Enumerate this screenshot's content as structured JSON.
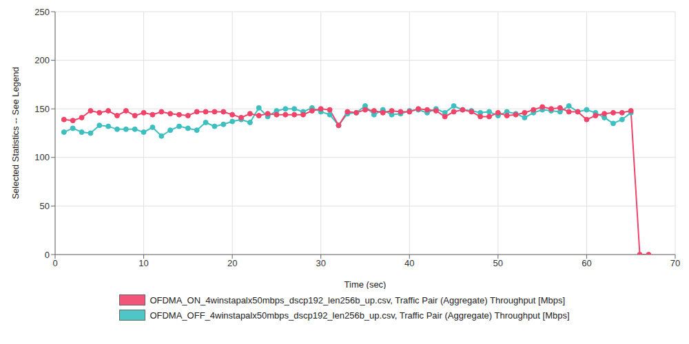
{
  "chart_data": {
    "type": "line",
    "x_label": "Time (sec)",
    "y_label": "Selected Statistics -- See Legend",
    "x": [
      1,
      2,
      3,
      4,
      5,
      6,
      7,
      8,
      9,
      10,
      11,
      12,
      13,
      14,
      15,
      16,
      17,
      18,
      19,
      20,
      21,
      22,
      23,
      24,
      25,
      26,
      27,
      28,
      29,
      30,
      31,
      32,
      33,
      34,
      35,
      36,
      37,
      38,
      39,
      40,
      41,
      42,
      43,
      44,
      45,
      46,
      47,
      48,
      49,
      50,
      51,
      52,
      53,
      54,
      55,
      56,
      57,
      58,
      59,
      60,
      61,
      62,
      63,
      64,
      65,
      66,
      67
    ],
    "series": [
      {
        "name": "OFDMA_ON_4winstapalx50mbps_dscp192_len256b_up.csv, Traffic Pair (Aggregate) Throughput [Mbps]",
        "color": "#f0436a",
        "marker": "circle",
        "values": [
          139,
          138,
          141,
          148,
          146,
          148,
          143,
          148,
          143,
          146,
          144,
          147,
          145,
          144,
          143,
          147,
          147,
          147,
          147,
          144,
          141,
          145,
          143,
          145,
          144,
          144,
          144,
          144,
          148,
          150,
          149,
          133,
          147,
          146,
          149,
          148,
          146,
          148,
          147,
          147,
          150,
          149,
          148,
          142,
          147,
          149,
          147,
          142,
          142,
          146,
          143,
          144,
          146,
          149,
          152,
          150,
          151,
          147,
          147,
          139,
          143,
          145,
          146,
          146,
          148,
          0,
          0
        ]
      },
      {
        "name": "OFDMA_OFF_4winstapalx50mbps_dscp192_len256b_up.csv, Traffic Pair (Aggregate) Throughput [Mbps]",
        "color": "#3dbfbf",
        "marker": "circle",
        "values": [
          126,
          130,
          126,
          125,
          133,
          132,
          129,
          129,
          129,
          126,
          131,
          122,
          128,
          132,
          130,
          128,
          136,
          132,
          134,
          137,
          139,
          136,
          151,
          142,
          148,
          150,
          150,
          147,
          151,
          147,
          144,
          133,
          145,
          146,
          153,
          144,
          149,
          144,
          145,
          148,
          149,
          146,
          150,
          146,
          153,
          149,
          148,
          146,
          147,
          143,
          147,
          145,
          141,
          146,
          149,
          148,
          147,
          153,
          147,
          149,
          146,
          141,
          135,
          139,
          146,
          null,
          null
        ]
      }
    ],
    "xlim": [
      0,
      70
    ],
    "xticks": [
      0,
      10,
      20,
      30,
      40,
      50,
      60,
      70
    ],
    "ylim": [
      0,
      250
    ],
    "yticks": [
      0,
      50,
      100,
      150,
      200,
      250
    ],
    "grid": true,
    "legend": "bottom"
  }
}
